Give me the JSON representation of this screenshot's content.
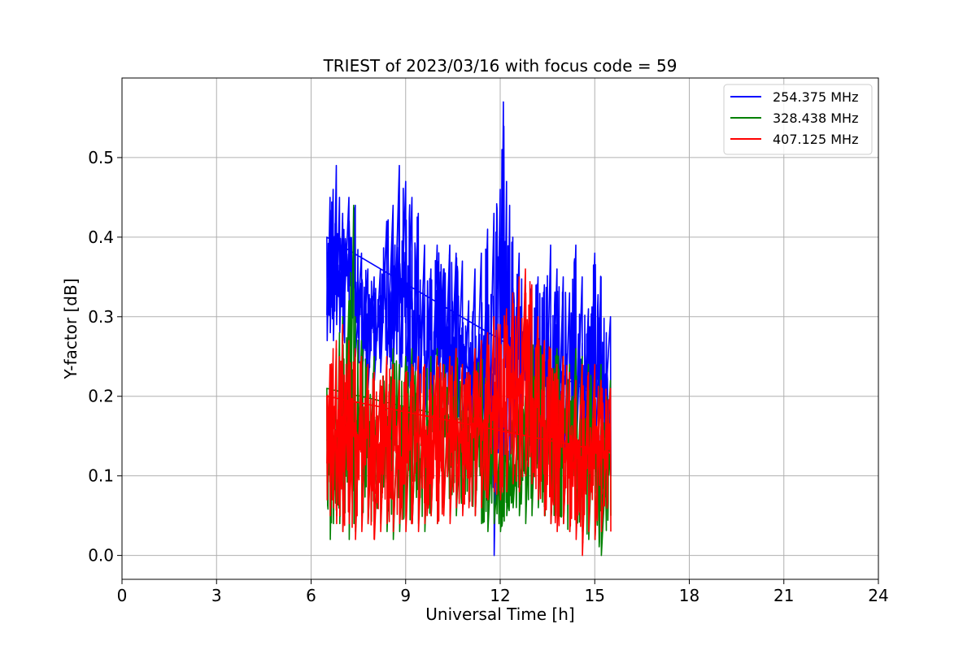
{
  "chart_data": {
    "type": "line",
    "title": "TRIEST of 2023/03/16 with focus code = 59",
    "xlabel": "Universal Time [h]",
    "ylabel": "Y-factor [dB]",
    "xlim": [
      0,
      24
    ],
    "ylim": [
      -0.03,
      0.6
    ],
    "x_ticks": [
      0,
      3,
      6,
      9,
      12,
      15,
      18,
      21,
      24
    ],
    "y_ticks": [
      0.0,
      0.1,
      0.2,
      0.3,
      0.4,
      0.5
    ],
    "y_tick_labels": [
      "0.0",
      "0.1",
      "0.2",
      "0.3",
      "0.4",
      "0.5"
    ],
    "grid": true,
    "legend_position": "top-right",
    "series": [
      {
        "name": "254.375 MHz",
        "color": "#0000ff",
        "x": [
          6.5,
          6.6,
          6.7,
          6.8,
          6.9,
          7.0,
          7.2,
          7.4,
          7.6,
          7.8,
          8.0,
          8.2,
          8.4,
          8.6,
          8.8,
          9.0,
          9.2,
          9.4,
          9.6,
          9.8,
          10.0,
          10.2,
          10.4,
          10.6,
          10.8,
          11.0,
          11.2,
          11.4,
          11.6,
          11.8,
          12.0,
          12.1,
          12.2,
          12.3,
          12.4,
          12.6,
          12.8,
          13.0,
          13.2,
          13.4,
          13.6,
          13.8,
          14.0,
          14.2,
          14.4,
          14.6,
          14.8,
          15.0,
          15.2,
          15.5
        ],
        "y_low": [
          0.27,
          0.28,
          0.27,
          0.29,
          0.28,
          0.27,
          0.26,
          0.25,
          0.22,
          0.21,
          0.22,
          0.23,
          0.24,
          0.23,
          0.22,
          0.21,
          0.2,
          0.18,
          0.17,
          0.16,
          0.16,
          0.17,
          0.18,
          0.16,
          0.15,
          0.14,
          0.13,
          0.11,
          0.08,
          0.0,
          0.1,
          0.12,
          0.13,
          0.12,
          0.13,
          0.14,
          0.15,
          0.12,
          0.1,
          0.07,
          0.08,
          0.09,
          0.1,
          0.11,
          0.12,
          0.13,
          0.12,
          0.11,
          0.1,
          0.1
        ],
        "y_high": [
          0.4,
          0.45,
          0.46,
          0.49,
          0.45,
          0.43,
          0.45,
          0.44,
          0.38,
          0.36,
          0.35,
          0.36,
          0.42,
          0.44,
          0.49,
          0.47,
          0.45,
          0.43,
          0.39,
          0.36,
          0.39,
          0.36,
          0.39,
          0.38,
          0.37,
          0.32,
          0.36,
          0.38,
          0.41,
          0.43,
          0.46,
          0.57,
          0.47,
          0.44,
          0.4,
          0.38,
          0.34,
          0.34,
          0.35,
          0.34,
          0.39,
          0.36,
          0.35,
          0.33,
          0.39,
          0.35,
          0.31,
          0.38,
          0.35,
          0.3
        ]
      },
      {
        "name": "328.438 MHz",
        "color": "#008000",
        "x": [
          6.5,
          6.6,
          6.7,
          6.8,
          6.9,
          7.0,
          7.2,
          7.35,
          7.4,
          7.6,
          7.8,
          8.0,
          8.2,
          8.4,
          8.6,
          8.8,
          9.0,
          9.2,
          9.4,
          9.6,
          9.8,
          10.0,
          10.2,
          10.4,
          10.6,
          10.8,
          11.0,
          11.2,
          11.4,
          11.6,
          11.8,
          12.0,
          12.2,
          12.4,
          12.6,
          12.8,
          13.0,
          13.2,
          13.4,
          13.6,
          13.8,
          14.0,
          14.2,
          14.4,
          14.6,
          14.8,
          15.0,
          15.2,
          15.5
        ],
        "y_low": [
          0.07,
          0.02,
          0.04,
          0.05,
          0.04,
          0.03,
          0.02,
          0.04,
          0.03,
          0.05,
          0.04,
          0.03,
          0.04,
          0.03,
          0.02,
          0.03,
          0.05,
          0.04,
          0.04,
          0.03,
          0.05,
          0.04,
          0.06,
          0.05,
          0.05,
          0.06,
          0.07,
          0.05,
          0.04,
          0.03,
          0.04,
          0.03,
          0.05,
          0.06,
          0.05,
          0.04,
          0.05,
          0.06,
          0.05,
          0.04,
          0.05,
          0.04,
          0.03,
          0.04,
          0.03,
          0.02,
          0.02,
          0.0,
          0.05
        ],
        "y_high": [
          0.21,
          0.22,
          0.24,
          0.26,
          0.28,
          0.3,
          0.32,
          0.44,
          0.3,
          0.27,
          0.24,
          0.25,
          0.22,
          0.24,
          0.26,
          0.24,
          0.25,
          0.26,
          0.24,
          0.23,
          0.25,
          0.26,
          0.24,
          0.25,
          0.26,
          0.24,
          0.23,
          0.24,
          0.26,
          0.21,
          0.19,
          0.14,
          0.16,
          0.17,
          0.19,
          0.2,
          0.27,
          0.28,
          0.26,
          0.25,
          0.26,
          0.25,
          0.24,
          0.26,
          0.25,
          0.24,
          0.23,
          0.24,
          0.22
        ]
      },
      {
        "name": "407.125 MHz",
        "color": "#ff0000",
        "x": [
          6.5,
          6.6,
          6.7,
          6.8,
          6.9,
          7.0,
          7.2,
          7.4,
          7.6,
          7.8,
          8.0,
          8.2,
          8.4,
          8.6,
          8.8,
          9.0,
          9.2,
          9.4,
          9.6,
          9.8,
          10.0,
          10.2,
          10.4,
          10.6,
          10.8,
          11.0,
          11.2,
          11.4,
          11.6,
          11.8,
          12.0,
          12.2,
          12.4,
          12.6,
          12.8,
          13.0,
          13.2,
          13.4,
          13.6,
          13.8,
          14.0,
          14.2,
          14.4,
          14.6,
          14.8,
          15.0,
          15.2,
          15.5
        ],
        "y_low": [
          0.07,
          0.05,
          0.06,
          0.04,
          0.05,
          0.03,
          0.04,
          0.02,
          0.03,
          0.04,
          0.02,
          0.03,
          0.04,
          0.03,
          0.04,
          0.03,
          0.04,
          0.03,
          0.04,
          0.05,
          0.04,
          0.05,
          0.04,
          0.06,
          0.05,
          0.06,
          0.05,
          0.06,
          0.07,
          0.08,
          0.07,
          0.08,
          0.09,
          0.08,
          0.1,
          0.09,
          0.07,
          0.05,
          0.04,
          0.03,
          0.04,
          0.03,
          0.02,
          0.0,
          0.03,
          0.02,
          0.03,
          0.03
        ],
        "y_high": [
          0.2,
          0.24,
          0.26,
          0.27,
          0.25,
          0.29,
          0.27,
          0.26,
          0.25,
          0.24,
          0.23,
          0.22,
          0.25,
          0.24,
          0.22,
          0.23,
          0.24,
          0.25,
          0.24,
          0.23,
          0.25,
          0.24,
          0.25,
          0.26,
          0.24,
          0.23,
          0.26,
          0.27,
          0.28,
          0.3,
          0.29,
          0.31,
          0.33,
          0.35,
          0.36,
          0.34,
          0.3,
          0.27,
          0.26,
          0.24,
          0.25,
          0.23,
          0.22,
          0.24,
          0.23,
          0.24,
          0.22,
          0.21
        ]
      }
    ]
  }
}
